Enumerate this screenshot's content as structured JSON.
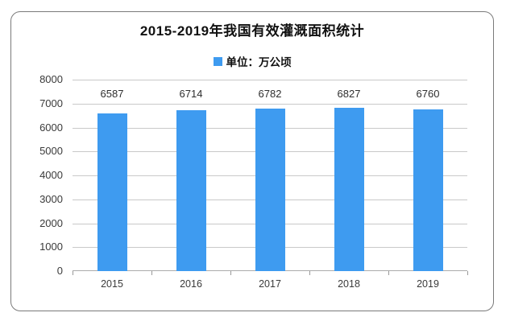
{
  "colors": {
    "bar": "#3E9BF0",
    "grid_line": "#C9C9C9",
    "axis_line": "#ABABAB",
    "tick_mark": "#999999",
    "frame_border": "#7A7A7A",
    "title_text": "#111111",
    "axis_text": "#3A3A3A"
  },
  "chart_data": {
    "type": "bar",
    "title": "2015-2019年我国有效灌溉面积统计",
    "legend_label": "单位：万公顷",
    "legend_position": "top-center",
    "categories": [
      "2015",
      "2016",
      "2017",
      "2018",
      "2019"
    ],
    "values": [
      6587,
      6714,
      6782,
      6827,
      6760
    ],
    "value_labels": [
      "6587",
      "6714",
      "6782",
      "6827",
      "6760"
    ],
    "xlabel": "",
    "ylabel": "",
    "ylim": [
      0,
      8000
    ],
    "ytick_step": 1000,
    "ytick_labels": [
      "0",
      "1000",
      "2000",
      "3000",
      "4000",
      "5000",
      "6000",
      "7000",
      "8000"
    ],
    "grid": true
  }
}
